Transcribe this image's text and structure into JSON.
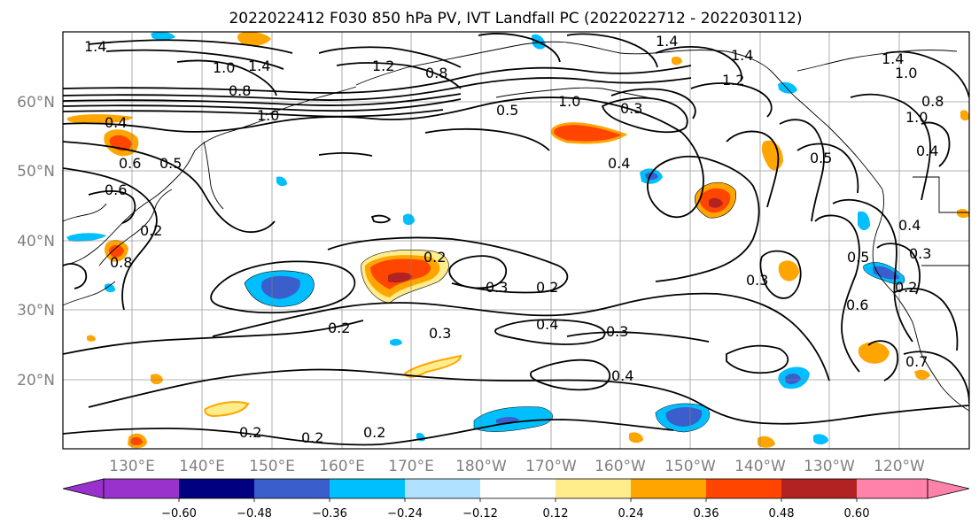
{
  "title": "2022022412 F030 850 hPa PV, IVT Landfall PC (2022022712 - 2022030112)",
  "map": {
    "lon_range": [
      "120°E",
      "115°W"
    ],
    "lat_range": [
      "10°N",
      "70°N"
    ],
    "grid": true,
    "lat_labels": [
      "60°N",
      "50°N",
      "40°N",
      "30°N",
      "20°N"
    ],
    "lon_labels": [
      "130°E",
      "140°E",
      "150°E",
      "160°E",
      "170°E",
      "180°W",
      "170°W",
      "160°W",
      "150°W",
      "140°W",
      "130°W",
      "120°W"
    ],
    "contour_labels": [
      "1.4",
      "1.4",
      "1.0",
      "1.4",
      "0.8",
      "1.2",
      "0.8",
      "1.0",
      "0.5",
      "1.0",
      "1.4",
      "1.2",
      "1.4",
      "1.0",
      "0.4",
      "0.6",
      "0.5",
      "0.6",
      "0.2",
      "0.8",
      "0.5",
      "0.4",
      "0.4",
      "0.5",
      "0.2",
      "0.3",
      "0.2",
      "0.3",
      "0.4",
      "0.3",
      "0.2",
      "0.3",
      "0.4",
      "0.2",
      "0.2",
      "0.2",
      "0.6",
      "0.7",
      "0.3",
      "0.2",
      "1.0",
      "0.8",
      "0.4",
      "0.3"
    ]
  },
  "colorbar": {
    "ticks": [
      "−0.60",
      "−0.48",
      "−0.36",
      "−0.24",
      "−0.12",
      "0.12",
      "0.24",
      "0.36",
      "0.48",
      "0.60"
    ],
    "colors": [
      "#9932cc",
      "#000080",
      "#3a5fcd",
      "#00bfff",
      "#b0e2ff",
      "#ffffff",
      "#ffec8b",
      "#ffa500",
      "#ff4500",
      "#b22222",
      "#ff82ab"
    ]
  }
}
